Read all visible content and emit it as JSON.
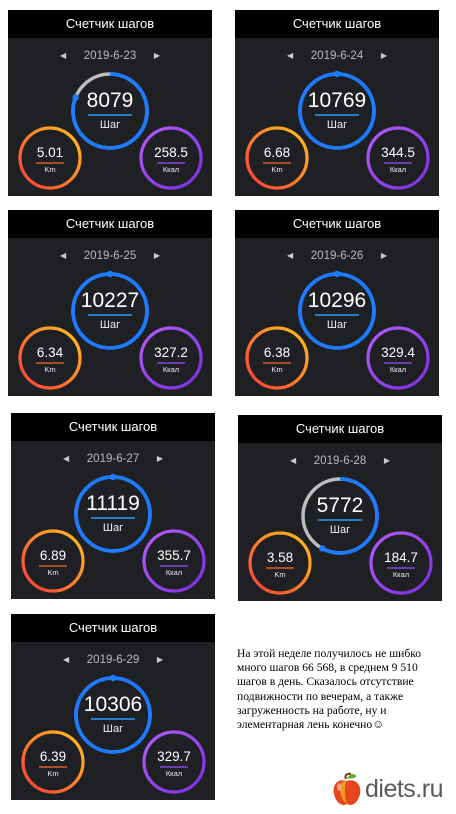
{
  "panels": [
    {
      "title": "Счетчик шагов",
      "date": "2019-6-23",
      "steps": "8079",
      "steps_unit": "Шаг",
      "km": "5.01",
      "km_unit": "Km",
      "kcal": "258.5",
      "kcal_unit": "Ккал",
      "goal_progress": 0.81
    },
    {
      "title": "Счетчик шагов",
      "date": "2019-6-24",
      "steps": "10769",
      "steps_unit": "Шаг",
      "km": "6.68",
      "km_unit": "Km",
      "kcal": "344.5",
      "kcal_unit": "Ккал",
      "goal_progress": 1.0
    },
    {
      "title": "Счетчик шагов",
      "date": "2019-6-25",
      "steps": "10227",
      "steps_unit": "Шаг",
      "km": "6.34",
      "km_unit": "Km",
      "kcal": "327.2",
      "kcal_unit": "Ккал",
      "goal_progress": 1.0
    },
    {
      "title": "Счетчик шагов",
      "date": "2019-6-26",
      "steps": "10296",
      "steps_unit": "Шаг",
      "km": "6.38",
      "km_unit": "Km",
      "kcal": "329.4",
      "kcal_unit": "Ккал",
      "goal_progress": 1.0
    },
    {
      "title": "Счетчик шагов",
      "date": "2019-6-27",
      "steps": "11119",
      "steps_unit": "Шаг",
      "km": "6.89",
      "km_unit": "Km",
      "kcal": "355.7",
      "kcal_unit": "Ккал",
      "goal_progress": 1.0
    },
    {
      "title": "Счетчик шагов",
      "date": "2019-6-28",
      "steps": "5772",
      "steps_unit": "Шаг",
      "km": "3.58",
      "km_unit": "Km",
      "kcal": "184.7",
      "kcal_unit": "Ккал",
      "goal_progress": 0.58
    },
    {
      "title": "Счетчик шагов",
      "date": "2019-6-29",
      "steps": "10306",
      "steps_unit": "Шаг",
      "km": "6.39",
      "km_unit": "Km",
      "kcal": "329.7",
      "kcal_unit": "Ккал",
      "goal_progress": 1.0
    }
  ],
  "note": "На этой неделе получилось не шибко много шагов 66 568, в среднем 9 510 шагов в день. Сказалось отсутствие подвижности по вечерам, а также загруженность на работе, ну и элементарная лень конечно",
  "note_emoji": "☺",
  "logo": {
    "text": "diets.ru"
  },
  "colors": {
    "panel_bg": "#1f2024",
    "header_bg": "#000000",
    "steps_ring": "#1e7bff",
    "km_ring": "#ff5a3c",
    "kcal_ring": "#9a4dff",
    "ring_track": "#bdbdbd"
  }
}
